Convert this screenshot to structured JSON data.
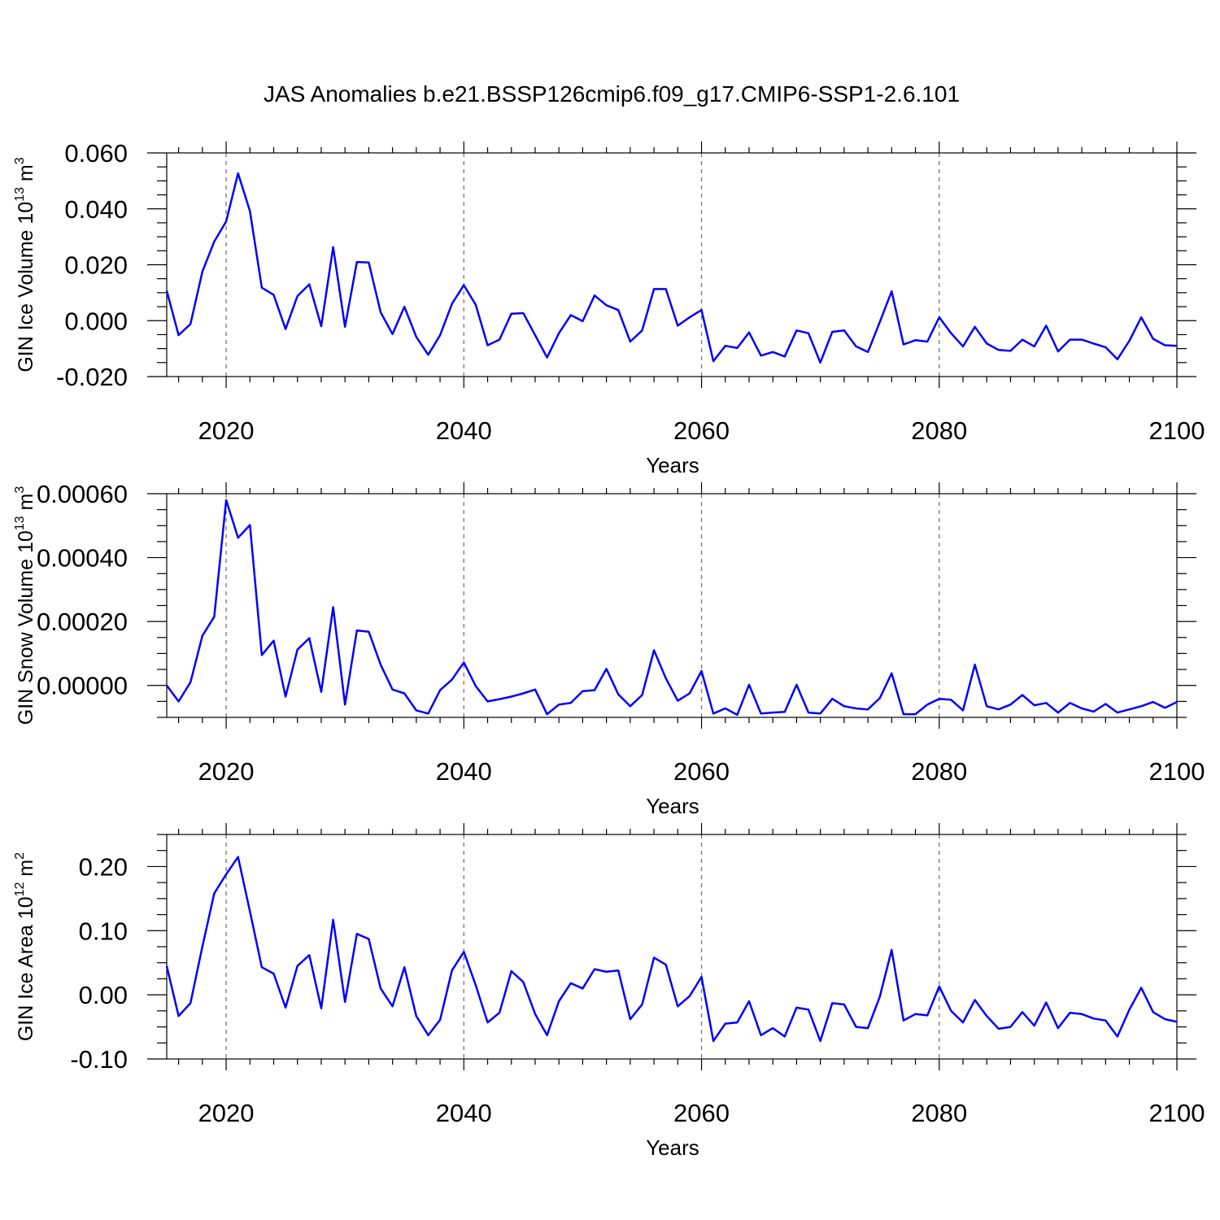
{
  "chart_data": {
    "title": "JAS Anomalies b.e21.BSSP126cmip6.f09_g17.CMIP6-SSP1-2.6.101",
    "x_start_year": 2015,
    "x_end_year": 2100,
    "x_ticks": [
      2020,
      2040,
      2060,
      2080,
      2100
    ],
    "x_tick_labels": [
      "2020",
      "2040",
      "2060",
      "2080",
      "2100"
    ],
    "grid_years": [
      2020,
      2040,
      2060,
      2080
    ],
    "xlabel": "Years",
    "line_color": "#0000ff",
    "panels": [
      {
        "type": "line",
        "ylabel_main": "GIN Ice Volume 10",
        "ylabel_exp": "13",
        "ylabel_unit": " m",
        "ylabel_unit_exp": "3",
        "ylim": [
          -0.02,
          0.06
        ],
        "y_ticks": [
          0.06,
          0.04,
          0.02,
          0.0,
          -0.02
        ],
        "y_tick_labels": [
          "0.060",
          "0.040",
          "0.020",
          "0.000",
          "-0.020"
        ],
        "values": [
          0.0107,
          -0.0052,
          -0.0012,
          0.0175,
          0.0283,
          0.0355,
          0.0527,
          0.0392,
          0.0118,
          0.0092,
          -0.003,
          0.0088,
          0.013,
          -0.002,
          0.0263,
          -0.0022,
          0.021,
          0.0208,
          0.003,
          -0.0048,
          0.005,
          -0.0058,
          -0.0122,
          -0.0052,
          0.006,
          0.0127,
          0.0057,
          -0.0088,
          -0.0068,
          0.0025,
          0.0027,
          -0.0052,
          -0.0132,
          -0.0045,
          0.002,
          -0.0002,
          0.009,
          0.0055,
          0.0038,
          -0.0075,
          -0.0035,
          0.0113,
          0.0113,
          -0.0018,
          0.0012,
          0.0038,
          -0.0145,
          -0.009,
          -0.0098,
          -0.0042,
          -0.0125,
          -0.0112,
          -0.0128,
          -0.0035,
          -0.0045,
          -0.015,
          -0.004,
          -0.0035,
          -0.0092,
          -0.0112,
          -0.0005,
          0.0105,
          -0.0085,
          -0.007,
          -0.0075,
          0.0012,
          -0.0045,
          -0.0092,
          -0.0022,
          -0.0082,
          -0.0105,
          -0.0108,
          -0.0068,
          -0.0092,
          -0.0018,
          -0.011,
          -0.0068,
          -0.0068,
          -0.0082,
          -0.0095,
          -0.0138,
          -0.0072,
          0.0012,
          -0.0065,
          -0.0088,
          -0.009
        ]
      },
      {
        "type": "line",
        "ylabel_main": "GIN Snow Volume 10",
        "ylabel_exp": "13",
        "ylabel_unit": " m",
        "ylabel_unit_exp": "3",
        "ylim": [
          -0.0001,
          0.0006
        ],
        "y_ticks": [
          0.0006,
          0.0004,
          0.0002,
          0.0
        ],
        "y_tick_labels": [
          "0.00060",
          "0.00040",
          "0.00020",
          "0.00000"
        ],
        "values": [
          0.0,
          -5e-05,
          1e-05,
          0.000155,
          0.000215,
          0.00058,
          0.000462,
          0.000502,
          9.5e-05,
          0.00014,
          -3.5e-05,
          0.000112,
          0.000148,
          -2e-05,
          0.000245,
          -6e-05,
          0.000172,
          0.000168,
          6.5e-05,
          -1.3e-05,
          -2.5e-05,
          -7.8e-05,
          -8.8e-05,
          -1.5e-05,
          1.8e-05,
          7.2e-05,
          -2e-06,
          -5e-05,
          -4.3e-05,
          -3.5e-05,
          -2.5e-05,
          -1.3e-05,
          -9e-05,
          -6e-05,
          -5.5e-05,
          -1.8e-05,
          -1.5e-05,
          5.2e-05,
          -2.8e-05,
          -6.5e-05,
          -3e-05,
          0.00011,
          2.2e-05,
          -4.8e-05,
          -2.5e-05,
          4.5e-05,
          -8.8e-05,
          -7.2e-05,
          -9.2e-05,
          2e-06,
          -8.8e-05,
          -8.5e-05,
          -8.3e-05,
          2e-06,
          -8.5e-05,
          -8.8e-05,
          -4.2e-05,
          -6.5e-05,
          -7.2e-05,
          -7.5e-05,
          -4e-05,
          3.8e-05,
          -9e-05,
          -9e-05,
          -6e-05,
          -4.2e-05,
          -4.5e-05,
          -7.8e-05,
          6.5e-05,
          -6.5e-05,
          -7.5e-05,
          -6e-05,
          -3e-05,
          -6.2e-05,
          -5.5e-05,
          -8.5e-05,
          -5.5e-05,
          -7.2e-05,
          -8.2e-05,
          -5.8e-05,
          -8.5e-05,
          -7.5e-05,
          -6.5e-05,
          -5.2e-05,
          -7e-05,
          -5.2e-05
        ]
      },
      {
        "type": "line",
        "ylabel_main": "GIN Ice Area 10",
        "ylabel_exp": "12",
        "ylabel_unit": " m",
        "ylabel_unit_exp": "2",
        "ylim": [
          -0.1,
          0.25
        ],
        "y_ticks": [
          0.2,
          0.1,
          0.0,
          -0.1
        ],
        "y_tick_labels": [
          "0.20",
          "0.10",
          "0.00",
          "-0.10"
        ],
        "values": [
          0.045,
          -0.033,
          -0.013,
          0.075,
          0.158,
          0.188,
          0.215,
          0.13,
          0.043,
          0.033,
          -0.02,
          0.045,
          0.062,
          -0.021,
          0.117,
          -0.011,
          0.095,
          0.087,
          0.01,
          -0.018,
          0.043,
          -0.033,
          -0.063,
          -0.039,
          0.038,
          0.067,
          0.015,
          -0.043,
          -0.028,
          0.037,
          0.02,
          -0.03,
          -0.063,
          -0.01,
          0.018,
          0.01,
          0.04,
          0.036,
          0.038,
          -0.038,
          -0.015,
          0.058,
          0.047,
          -0.018,
          -0.002,
          0.028,
          -0.072,
          -0.045,
          -0.043,
          -0.01,
          -0.063,
          -0.052,
          -0.065,
          -0.02,
          -0.023,
          -0.072,
          -0.013,
          -0.015,
          -0.05,
          -0.052,
          -0.003,
          0.07,
          -0.04,
          -0.03,
          -0.032,
          0.013,
          -0.025,
          -0.043,
          -0.008,
          -0.033,
          -0.053,
          -0.05,
          -0.027,
          -0.048,
          -0.012,
          -0.052,
          -0.028,
          -0.03,
          -0.037,
          -0.04,
          -0.065,
          -0.023,
          0.011,
          -0.027,
          -0.038,
          -0.042
        ]
      }
    ]
  }
}
